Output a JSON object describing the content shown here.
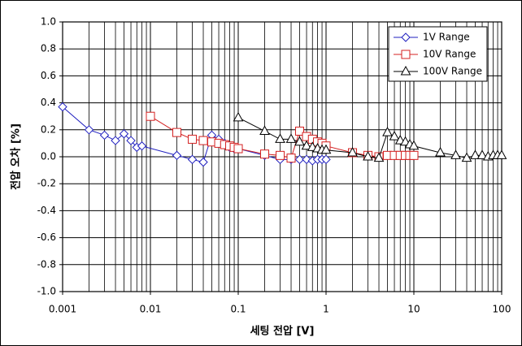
{
  "chart_data": {
    "type": "line",
    "xlabel": "세팅 전압 [V]",
    "ylabel": "전압 오차 [%]",
    "xscale": "log",
    "xlim": [
      0.001,
      100
    ],
    "ylim": [
      -1.0,
      1.0
    ],
    "xticks": [
      0.001,
      0.01,
      0.1,
      1,
      10,
      100
    ],
    "xminorticks": [
      0.002,
      0.003,
      0.004,
      0.005,
      0.006,
      0.007,
      0.008,
      0.009,
      0.02,
      0.03,
      0.04,
      0.05,
      0.06,
      0.07,
      0.08,
      0.09,
      0.2,
      0.3,
      0.4,
      0.5,
      0.6,
      0.7,
      0.8,
      0.9,
      2,
      3,
      4,
      5,
      6,
      7,
      8,
      9,
      20,
      30,
      40,
      50,
      60,
      70,
      80,
      90
    ],
    "yticks": [
      {
        "value": 1.0,
        "label": "1.0"
      },
      {
        "value": 0.8,
        "label": "0.8"
      },
      {
        "value": 0.6,
        "label": "0.6"
      },
      {
        "value": 0.4,
        "label": "0.4"
      },
      {
        "value": 0.2,
        "label": "0.2"
      },
      {
        "value": 0,
        "label": "0.0"
      },
      {
        "value": -0.2,
        "label": "-0.2"
      },
      {
        "value": -0.4,
        "label": "-0.4"
      },
      {
        "value": -0.6,
        "label": "-0.6"
      },
      {
        "value": -0.8,
        "label": "-0.8"
      },
      {
        "value": -1.0,
        "label": "-1.0"
      }
    ],
    "grid": true,
    "legend": "upper right",
    "series": [
      {
        "name": "1V Range",
        "color": "#1f1fbf",
        "marker": "diamond",
        "x": [
          0.001,
          0.002,
          0.003,
          0.004,
          0.005,
          0.006,
          0.007,
          0.008,
          0.02,
          0.03,
          0.04,
          0.05,
          0.06,
          0.07,
          0.08,
          0.09,
          0.1,
          0.2,
          0.3,
          0.4,
          0.5,
          0.6,
          0.7,
          0.8,
          0.9,
          1
        ],
        "values": [
          0.37,
          0.2,
          0.16,
          0.12,
          0.17,
          0.12,
          0.07,
          0.08,
          0.01,
          -0.02,
          -0.04,
          0.16,
          0.13,
          0.1,
          0.07,
          0.06,
          0.06,
          0.01,
          -0.02,
          -0.02,
          -0.02,
          -0.02,
          -0.03,
          -0.02,
          -0.02,
          -0.02
        ]
      },
      {
        "name": "10V Range",
        "color": "#d42020",
        "marker": "square",
        "x": [
          0.01,
          0.02,
          0.03,
          0.04,
          0.05,
          0.06,
          0.07,
          0.08,
          0.09,
          0.1,
          0.2,
          0.3,
          0.4,
          0.5,
          0.6,
          0.7,
          0.8,
          0.9,
          1,
          2,
          3,
          4,
          5,
          6,
          7,
          8,
          9,
          10
        ],
        "values": [
          0.3,
          0.18,
          0.13,
          0.12,
          0.11,
          0.1,
          0.09,
          0.08,
          0.07,
          0.06,
          0.02,
          0.01,
          -0.01,
          0.19,
          0.15,
          0.13,
          0.11,
          0.1,
          0.08,
          0.03,
          0.01,
          0.0,
          0.01,
          0.01,
          0.01,
          0.01,
          0.01,
          0.01
        ]
      },
      {
        "name": "100V Range",
        "color": "#000000",
        "marker": "triangle",
        "x": [
          0.1,
          0.2,
          0.3,
          0.4,
          0.5,
          0.6,
          0.7,
          0.8,
          0.9,
          1,
          2,
          3,
          4,
          5,
          6,
          7,
          8,
          9,
          10,
          20,
          30,
          40,
          50,
          60,
          70,
          80,
          90,
          100
        ],
        "values": [
          0.29,
          0.19,
          0.13,
          0.13,
          0.11,
          0.08,
          0.07,
          0.06,
          0.05,
          0.05,
          0.03,
          0.0,
          -0.01,
          0.18,
          0.15,
          0.12,
          0.11,
          0.09,
          0.08,
          0.03,
          0.01,
          -0.01,
          0.01,
          0.01,
          0.0,
          0.01,
          0.01,
          0.01
        ]
      }
    ]
  }
}
